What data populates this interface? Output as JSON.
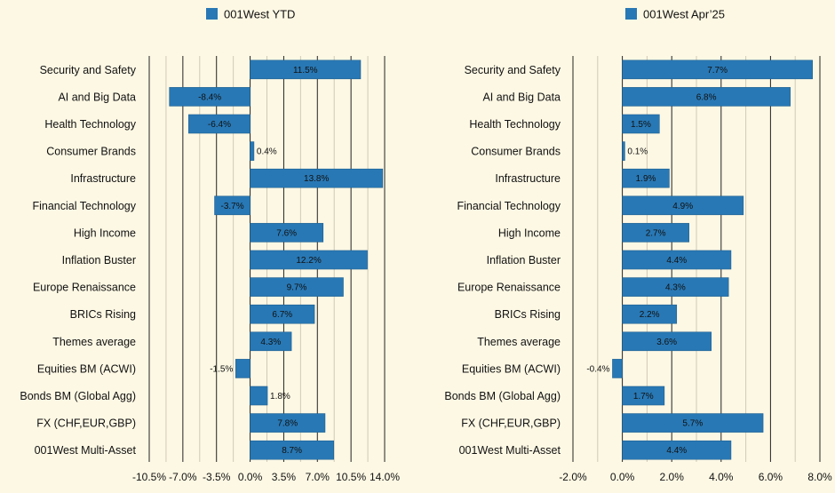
{
  "colors": {
    "background": "#fdf8e4",
    "bar": "#2878b5",
    "bar_edge": "#1f5f90",
    "grid_minor": "#cfcab5",
    "grid_major": "#222222"
  },
  "chart_data": [
    {
      "type": "bar",
      "orientation": "horizontal",
      "legend": {
        "label": "001West YTD",
        "position": "top"
      },
      "categories": [
        "Security and Safety",
        "AI and Big Data",
        "Health Technology",
        "Consumer Brands",
        "Infrastructure",
        "Financial Technology",
        "High Income ",
        "Inflation Buster",
        "Europe Renaissance",
        "BRICs Rising",
        "Themes average",
        "Equities BM (ACWI)",
        "Bonds BM (Global Agg)",
        "FX (CHF,EUR,GBP)",
        "001West Multi-Asset"
      ],
      "series": [
        {
          "name": "001West YTD",
          "values": [
            11.5,
            -8.4,
            -6.4,
            0.4,
            13.8,
            -3.7,
            7.6,
            12.2,
            9.7,
            6.7,
            4.3,
            -1.5,
            1.8,
            7.8,
            8.7
          ]
        }
      ],
      "data_labels": [
        "11.5%",
        "-8.4%",
        "-6.4%",
        "0.4%",
        "13.8%",
        "-3.7%",
        "7.6%",
        "12.2%",
        "9.7%",
        "6.7%",
        "4.3%",
        "-1.5%",
        "1.8%",
        "7.8%",
        "8.7%"
      ],
      "xlim": [
        -10.5,
        14.0
      ],
      "xticks": [
        -10.5,
        -7.0,
        -3.5,
        0.0,
        3.5,
        7.0,
        10.5,
        14.0
      ],
      "xtick_labels": [
        "-10.5%",
        "-7.0%",
        "-3.5%",
        "0.0%",
        "3.5%",
        "7.0%",
        "10.5%",
        "14.0%"
      ],
      "grid": true
    },
    {
      "type": "bar",
      "orientation": "horizontal",
      "legend": {
        "label": "001West Apr’25",
        "position": "top"
      },
      "categories": [
        "Security and Safety",
        "AI and Big Data",
        "Health Technology",
        "Consumer Brands",
        "Infrastructure",
        "Financial Technology",
        "High Income ",
        "Inflation Buster",
        "Europe Renaissance",
        "BRICs Rising",
        "Themes average",
        "Equities BM (ACWI)",
        "Bonds BM (Global Agg)",
        "FX (CHF,EUR,GBP)",
        "001West Multi-Asset"
      ],
      "series": [
        {
          "name": "001West Apr’25",
          "values": [
            7.7,
            6.8,
            1.5,
            0.1,
            1.9,
            4.9,
            2.7,
            4.4,
            4.3,
            2.2,
            3.6,
            -0.4,
            1.7,
            5.7,
            4.4
          ]
        }
      ],
      "data_labels": [
        "7.7%",
        "6.8%",
        "1.5%",
        "0.1%",
        "1.9%",
        "4.9%",
        "2.7%",
        "4.4%",
        "4.3%",
        "2.2%",
        "3.6%",
        "-0.4%",
        "1.7%",
        "5.7%",
        "4.4%"
      ],
      "xlim": [
        -2.0,
        8.0
      ],
      "xticks": [
        -2.0,
        0.0,
        2.0,
        4.0,
        6.0,
        8.0
      ],
      "xtick_labels": [
        "-2.0%",
        "0.0%",
        "2.0%",
        "4.0%",
        "6.0%",
        "8.0%"
      ],
      "grid": true
    }
  ]
}
